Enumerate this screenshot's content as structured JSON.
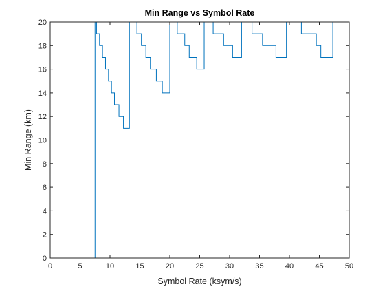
{
  "chart_data": {
    "type": "line",
    "title": "Min Range vs Symbol Rate",
    "xlabel": "Symbol Rate (ksym/s)",
    "ylabel": "Min Range (km)",
    "xlim": [
      0,
      50
    ],
    "ylim": [
      0,
      20
    ],
    "xticks": [
      0,
      5,
      10,
      15,
      20,
      25,
      30,
      35,
      40,
      45,
      50
    ],
    "yticks": [
      0,
      2,
      4,
      6,
      8,
      10,
      12,
      14,
      16,
      18,
      20
    ],
    "grid": false,
    "line_color": "#0072BD",
    "series": [
      {
        "name": "Min Range",
        "step": true,
        "x": [
          1,
          7.5,
          7.75,
          8.25,
          8.75,
          9.25,
          9.75,
          10.25,
          10.75,
          11.5,
          12.25,
          13.25,
          14.5,
          15.25,
          16,
          16.75,
          17.75,
          18.75,
          20,
          21.25,
          22.5,
          23.25,
          24.5,
          25.75,
          27.25,
          29,
          30.5,
          32,
          33.75,
          35.5,
          37.75,
          39.5,
          42,
          44.5,
          45.25,
          47.25,
          50
        ],
        "y": [
          0,
          20,
          19,
          18,
          17,
          16,
          15,
          14,
          13,
          12,
          11,
          20,
          19,
          18,
          17,
          16,
          15,
          14,
          20,
          19,
          18,
          17,
          16,
          20,
          19,
          18,
          17,
          20,
          19,
          18,
          17,
          20,
          19,
          18,
          17,
          20,
          19
        ]
      }
    ]
  }
}
